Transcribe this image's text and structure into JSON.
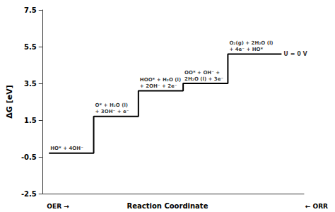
{
  "chart_data": {
    "type": "line",
    "ylabel": "ΔG [eV]",
    "xlabel": "Reaction Coordinate",
    "x_left_label": "OER →",
    "x_right_label": "← ORR",
    "steps": [
      {
        "x": [
          0,
          1
        ],
        "y": -0.3,
        "label": "HO* + 4OH⁻"
      },
      {
        "x": [
          1,
          2
        ],
        "y": 1.7,
        "label": "O* + H₂O (l)\n+ 3OH⁻ + e⁻"
      },
      {
        "x": [
          2,
          3
        ],
        "y": 3.1,
        "label": "HOO* + H₂O (l)\n+ 2OH⁻ + 2e⁻"
      },
      {
        "x": [
          3,
          4
        ],
        "y": 3.5,
        "label": "OO* + OH⁻ +\n2H₂O (l) + 3e⁻"
      },
      {
        "x": [
          4,
          5.2
        ],
        "y": 5.1,
        "label": "O₂(g) + 2H₂O (l)\n+ 4e⁻ + HO*"
      }
    ],
    "end_label": "U = 0 V",
    "color": "#000000",
    "xlim": [
      -0.15,
      5.7
    ],
    "ylim": [
      -2.5,
      7.5
    ],
    "yticks": [
      -2.5,
      -0.5,
      1.5,
      3.5,
      5.5,
      7.5
    ],
    "tick_labels": "y",
    "grid": false
  }
}
